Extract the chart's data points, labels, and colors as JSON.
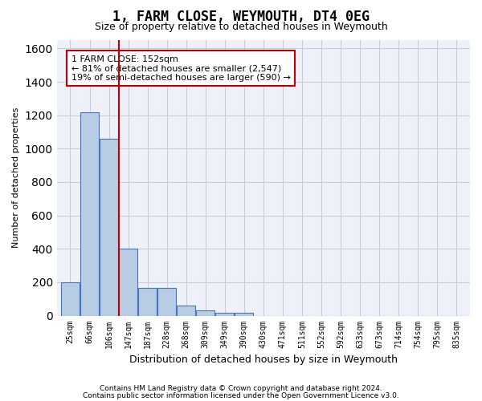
{
  "title": "1, FARM CLOSE, WEYMOUTH, DT4 0EG",
  "subtitle": "Size of property relative to detached houses in Weymouth",
  "xlabel": "Distribution of detached houses by size in Weymouth",
  "ylabel": "Number of detached properties",
  "bins": [
    "25sqm",
    "66sqm",
    "106sqm",
    "147sqm",
    "187sqm",
    "228sqm",
    "268sqm",
    "309sqm",
    "349sqm",
    "390sqm",
    "430sqm",
    "471sqm",
    "511sqm",
    "552sqm",
    "592sqm",
    "633sqm",
    "673sqm",
    "714sqm",
    "754sqm",
    "795sqm",
    "835sqm"
  ],
  "values": [
    200,
    1220,
    1060,
    400,
    165,
    165,
    60,
    30,
    15,
    15,
    0,
    0,
    0,
    0,
    0,
    0,
    0,
    0,
    0,
    0,
    0
  ],
  "bar_color": "#b8cce4",
  "bar_edge_color": "#4472c4",
  "vline_x_index": 3,
  "vline_color": "#c00000",
  "annotation_text": "1 FARM CLOSE: 152sqm\n← 81% of detached houses are smaller (2,547)\n19% of semi-detached houses are larger (590) →",
  "annotation_box_color": "white",
  "annotation_box_edge": "#c00000",
  "ylim": [
    0,
    1650
  ],
  "yticks": [
    0,
    200,
    400,
    600,
    800,
    1000,
    1200,
    1400,
    1600
  ],
  "footer1": "Contains HM Land Registry data © Crown copyright and database right 2024.",
  "footer2": "Contains public sector information licensed under the Open Government Licence v3.0.",
  "plot_bg_color": "#eef1f9",
  "grid_color": "#c8cedd"
}
